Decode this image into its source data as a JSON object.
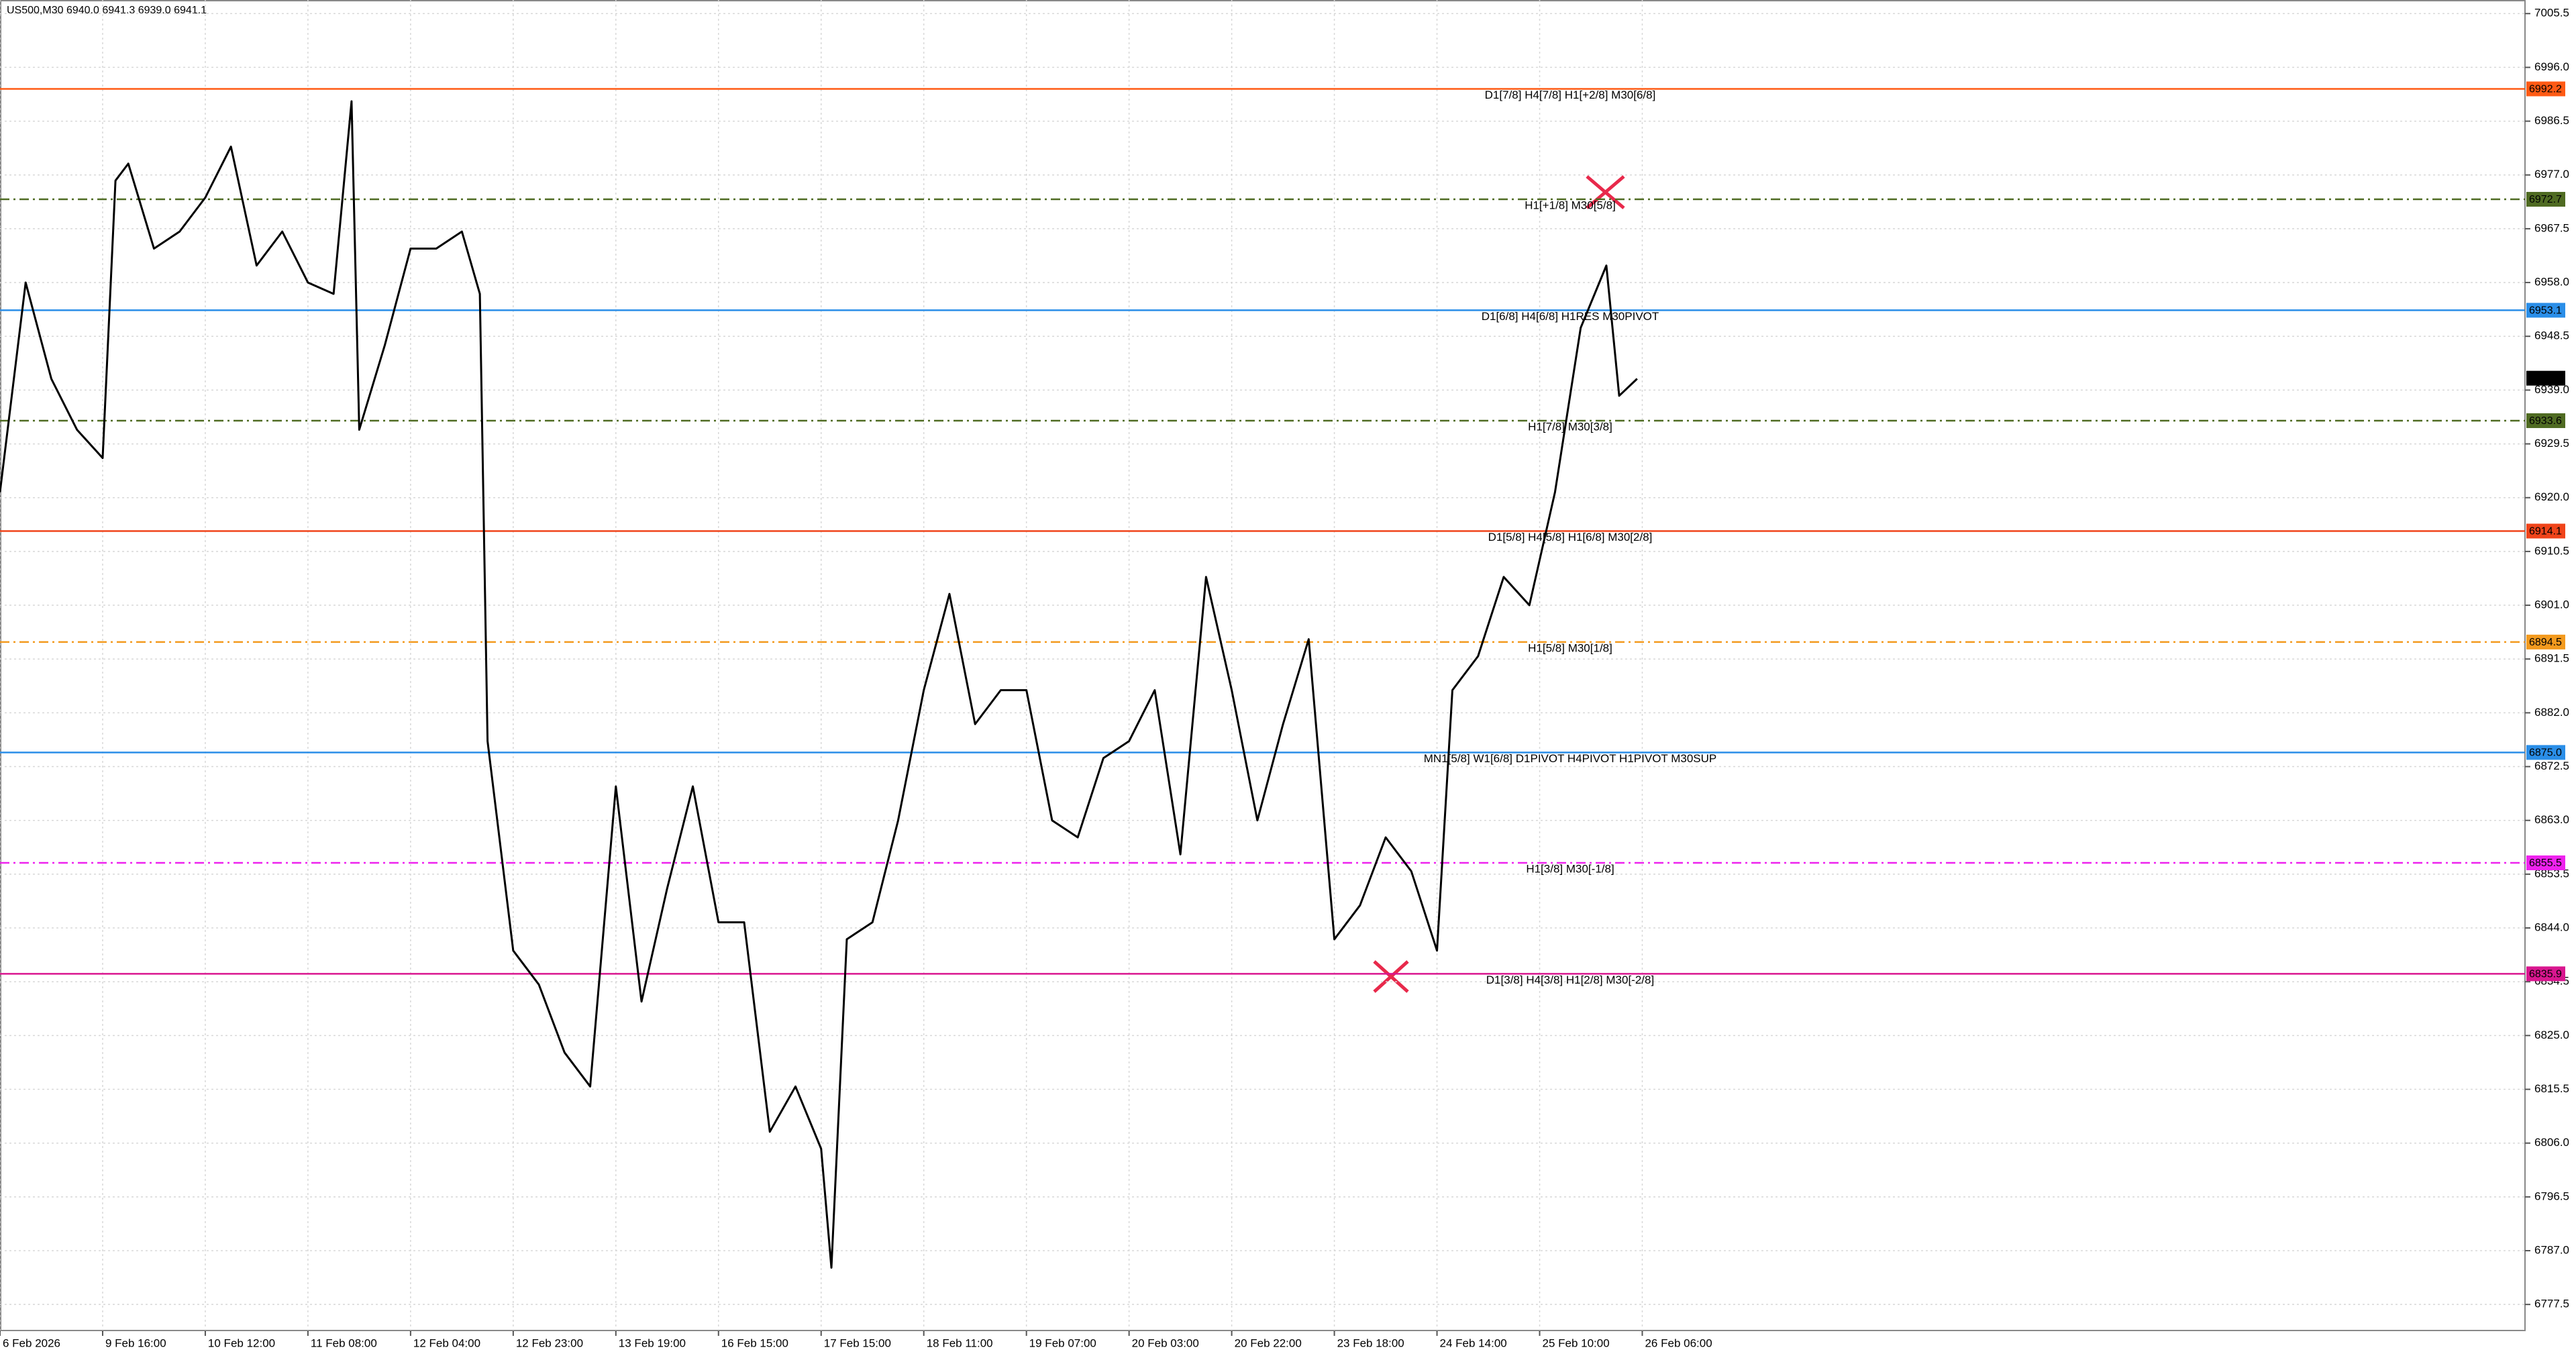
{
  "chart_data": {
    "type": "line",
    "title": "US500,M30  6940.0 6941.3 6939.0 6941.1",
    "xlim": [
      0,
      984
    ],
    "ylim": [
      6772.9,
      7007.9
    ],
    "grid": true,
    "x": [
      0,
      10,
      20,
      30,
      40,
      45,
      50,
      60,
      70,
      80,
      90,
      100,
      110,
      120,
      130,
      137,
      140,
      150,
      160,
      170,
      180,
      187,
      190,
      200,
      210,
      220,
      230,
      240,
      250,
      260,
      270,
      280,
      290,
      300,
      310,
      320,
      324,
      330,
      340,
      350,
      360,
      370,
      380,
      390,
      400,
      410,
      420,
      430,
      440,
      450,
      460,
      470,
      480,
      490,
      500,
      510,
      520,
      530,
      540,
      550,
      560,
      566,
      576,
      586,
      596,
      606,
      616,
      626,
      631,
      638
    ],
    "series": [
      {
        "name": "US500",
        "color": "#000000",
        "values": [
          6921,
          6958,
          6941,
          6932,
          6927,
          6976,
          6979,
          6964,
          6967,
          6973,
          6982,
          6961,
          6967,
          6958,
          6956,
          6990,
          6932,
          6947,
          6964,
          6964,
          6967,
          6956,
          6877,
          6840,
          6834,
          6822,
          6816,
          6869,
          6831,
          6851,
          6869,
          6845,
          6845,
          6808,
          6816,
          6805,
          6784,
          6842,
          6845,
          6863,
          6886,
          6903,
          6880,
          6886,
          6886,
          6863,
          6860,
          6874,
          6877,
          6886,
          6857,
          6906,
          6886,
          6863,
          6880,
          6895,
          6842,
          6848,
          6860,
          6854,
          6840,
          6886,
          6892,
          6906,
          6901,
          6921,
          6950,
          6961,
          6938,
          6941
        ]
      }
    ],
    "xticks": [
      {
        "value": 0,
        "label": "6 Feb 2026"
      },
      {
        "value": 40,
        "label": "9 Feb 16:00"
      },
      {
        "value": 80,
        "label": "10 Feb 12:00"
      },
      {
        "value": 120,
        "label": "11 Feb 08:00"
      },
      {
        "value": 160,
        "label": "12 Feb 04:00"
      },
      {
        "value": 200,
        "label": "12 Feb 23:00"
      },
      {
        "value": 240,
        "label": "13 Feb 19:00"
      },
      {
        "value": 280,
        "label": "16 Feb 15:00"
      },
      {
        "value": 320,
        "label": "17 Feb 15:00"
      },
      {
        "value": 360,
        "label": "18 Feb 11:00"
      },
      {
        "value": 400,
        "label": "19 Feb 07:00"
      },
      {
        "value": 440,
        "label": "20 Feb 03:00"
      },
      {
        "value": 480,
        "label": "20 Feb 22:00"
      },
      {
        "value": 520,
        "label": "23 Feb 18:00"
      },
      {
        "value": 560,
        "label": "24 Feb 14:00"
      },
      {
        "value": 600,
        "label": "25 Feb 10:00"
      },
      {
        "value": 640,
        "label": "26 Feb 06:00"
      }
    ],
    "yticks": [
      7005.5,
      {
        "value": 6996,
        "label": "6996.0"
      },
      6986.5,
      {
        "value": 6977,
        "label": "6977.0"
      },
      6967.5,
      {
        "value": 6958,
        "label": "6958.0"
      },
      6948.5,
      {
        "value": 6939,
        "label": "6939.0"
      },
      6929.5,
      {
        "value": 6920,
        "label": "6920.0"
      },
      6910.5,
      {
        "value": 6901,
        "label": "6901.0"
      },
      6891.5,
      {
        "value": 6882,
        "label": "6882.0"
      },
      6872.5,
      {
        "value": 6863,
        "label": "6863.0"
      },
      6853.5,
      {
        "value": 6844,
        "label": "6844.0"
      },
      6834.5,
      {
        "value": 6825,
        "label": "6825.0"
      },
      6815.5,
      {
        "value": 6806,
        "label": "6806.0"
      },
      6796.5,
      {
        "value": 6787,
        "label": "6787.0"
      },
      6777.5
    ],
    "levels": [
      {
        "value": 6992.2,
        "text": "D1[7/8] H4[7/8] H1[+2/8] M30[6/8]",
        "color": "#ff5a14",
        "box": "#ff5a14",
        "dash": false
      },
      {
        "value": 6972.7,
        "text": "H1[+1/8] M30[5/8]",
        "color": "#4f6b22",
        "box": "#4f6b22",
        "dash": true
      },
      {
        "value": 6953.1,
        "text": "D1[6/8] H4[6/8] H1RES M30PIVOT",
        "color": "#2a8ee8",
        "box": "#2a8ee8",
        "dash": false
      },
      {
        "value": 6933.6,
        "text": "H1[7/8] M30[3/8]",
        "color": "#4f6b22",
        "box": "#4f6b22",
        "dash": true
      },
      {
        "value": 6914.1,
        "text": "D1[5/8] H4[5/8] H1[6/8] M30[2/8]",
        "color": "#f0441a",
        "box": "#f0441a",
        "dash": false
      },
      {
        "value": 6894.5,
        "text": "H1[5/8] M30[1/8]",
        "color": "#f39a1e",
        "box": "#f39a1e",
        "dash": true
      },
      {
        "value": 6875,
        "value_label": "6875.0",
        "text": "MN1[5/8] W1[6/8] D1PIVOT H4PIVOT H1PIVOT M30SUP",
        "color": "#2a8ee8",
        "box": "#2a8ee8",
        "dash": false
      },
      {
        "value": 6855.5,
        "text": "H1[3/8] M30[-1/8]",
        "color": "#ee22ee",
        "box": "#ee22ee",
        "dash": true
      },
      {
        "value": 6835.9,
        "text": "D1[3/8] H4[3/8] H1[2/8] M30[-2/8]",
        "color": "#d9168f",
        "box": "#d9168f",
        "dash": false
      }
    ],
    "current_price": 6941.1
  }
}
